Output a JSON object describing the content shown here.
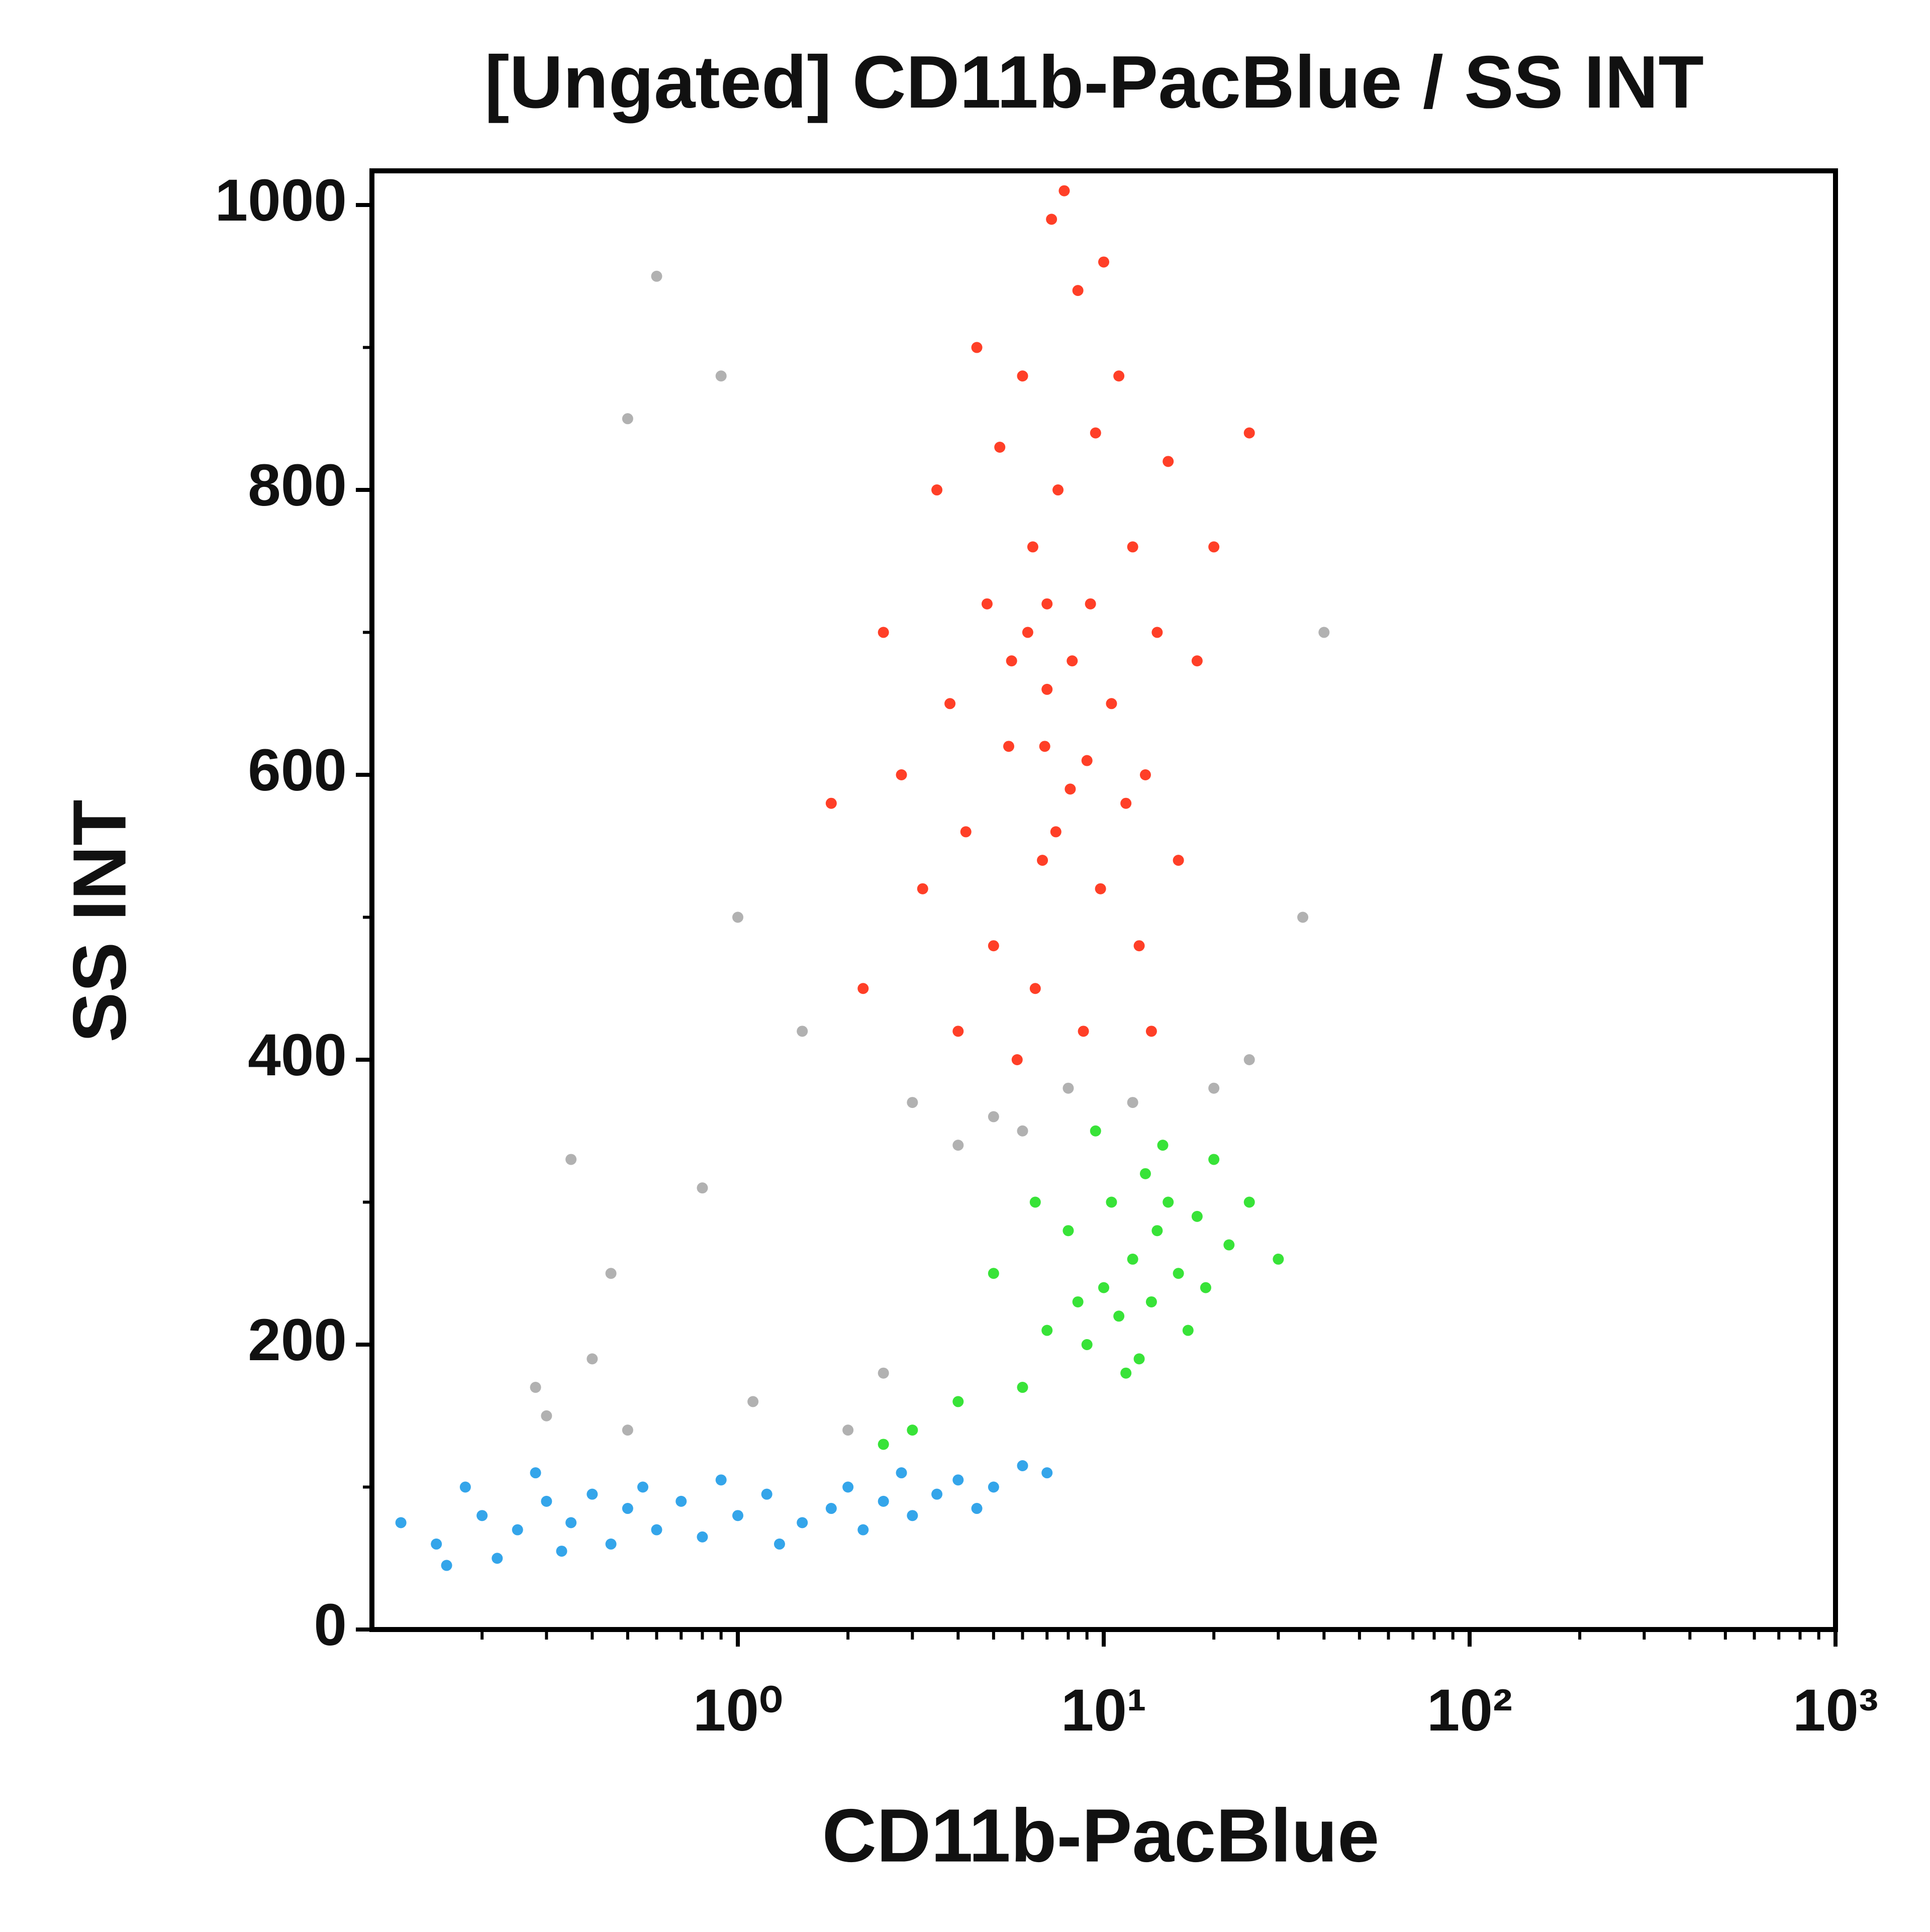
{
  "chart_data": {
    "type": "scatter",
    "title": "[Ungated] CD11b-PacBlue / SS INT",
    "x_label": "CD11b-PacBlue",
    "y_label": "SS INT",
    "xscale": "log",
    "xlim": [
      0.1,
      1000
    ],
    "xticks": [
      {
        "value": 1,
        "label": "10⁰"
      },
      {
        "value": 10,
        "label": "10¹"
      },
      {
        "value": 100,
        "label": "10²"
      },
      {
        "value": 1000,
        "label": "10³"
      }
    ],
    "xminorticks": [
      0.2,
      0.3,
      0.4,
      0.5,
      0.6,
      0.7,
      0.8,
      0.9,
      2,
      3,
      4,
      5,
      6,
      7,
      8,
      9,
      20,
      30,
      40,
      50,
      60,
      70,
      80,
      90,
      200,
      300,
      400,
      500,
      600,
      700,
      800,
      900
    ],
    "ylim": [
      0,
      1024
    ],
    "yticks": [
      0,
      200,
      400,
      600,
      800,
      1000
    ],
    "yminorticks": [
      100,
      300,
      500,
      700,
      900
    ],
    "grid": false,
    "series": [
      {
        "color": "#a8a8a8",
        "x": [
          0.3,
          0.28,
          0.4,
          0.5,
          0.8,
          1.1,
          2.0,
          0.6,
          0.9,
          1.5,
          3,
          5,
          8,
          12,
          20,
          25,
          0.35,
          0.45,
          1.0,
          35,
          40,
          0.5,
          2.5,
          4,
          6
        ],
        "values": [
          150,
          170,
          190,
          140,
          310,
          160,
          140,
          950,
          880,
          420,
          370,
          360,
          380,
          370,
          380,
          400,
          330,
          250,
          500,
          500,
          700,
          850,
          180,
          340,
          350
        ]
      },
      {
        "color": "#ff2a10",
        "x": [
          5.5,
          6.2,
          7.0,
          8.1,
          6.8,
          9.2,
          7.5,
          5.0,
          10.5,
          12,
          4.2,
          6.0,
          8.5,
          7.2,
          11,
          13,
          4.8,
          3.8,
          6.5,
          9.8,
          14,
          15,
          5.8,
          8.8,
          3.2,
          2.8,
          12.5,
          7.8,
          10,
          6.4,
          5.2,
          16,
          18,
          2.5,
          4.5,
          3.5,
          9.0,
          7.4,
          8.2,
          6.9,
          11.5,
          5.6,
          20,
          2.2,
          1.8,
          25,
          4.0,
          13.5,
          9.5,
          7.0
        ],
        "values": [
          620,
          700,
          660,
          590,
          540,
          720,
          800,
          480,
          650,
          760,
          560,
          880,
          940,
          990,
          880,
          600,
          720,
          650,
          450,
          520,
          700,
          820,
          400,
          420,
          520,
          600,
          480,
          1010,
          960,
          760,
          830,
          540,
          680,
          700,
          900,
          800,
          610,
          560,
          680,
          620,
          580,
          680,
          760,
          450,
          580,
          840,
          420,
          420,
          840,
          720
        ]
      },
      {
        "color": "#22e022",
        "x": [
          12,
          10,
          14,
          11,
          15,
          9,
          13,
          16,
          18,
          8,
          7,
          20,
          11.5,
          6,
          5,
          10.5,
          13.5,
          17,
          22,
          25,
          4,
          3,
          9.5,
          12.5,
          14.5,
          19,
          8.5,
          30,
          2.5,
          6.5
        ],
        "values": [
          260,
          240,
          280,
          220,
          300,
          200,
          320,
          250,
          290,
          280,
          210,
          330,
          180,
          170,
          250,
          300,
          230,
          210,
          270,
          300,
          160,
          140,
          350,
          190,
          340,
          240,
          230,
          260,
          130,
          300
        ]
      },
      {
        "color": "#1e9be8",
        "x": [
          0.15,
          0.2,
          0.25,
          0.3,
          0.18,
          0.22,
          0.35,
          0.4,
          0.5,
          0.6,
          0.7,
          0.8,
          1.0,
          1.2,
          1.5,
          1.8,
          2.0,
          2.5,
          3.0,
          3.5,
          4.0,
          5.0,
          6.0,
          0.28,
          0.45,
          0.9,
          1.3,
          2.2,
          0.12,
          0.16,
          0.33,
          0.55,
          7,
          4.5,
          2.8
        ],
        "values": [
          60,
          80,
          70,
          90,
          100,
          50,
          75,
          95,
          85,
          70,
          90,
          65,
          80,
          95,
          75,
          85,
          100,
          90,
          80,
          95,
          105,
          100,
          115,
          110,
          60,
          105,
          60,
          70,
          75,
          45,
          55,
          100,
          110,
          85,
          110
        ]
      }
    ]
  }
}
